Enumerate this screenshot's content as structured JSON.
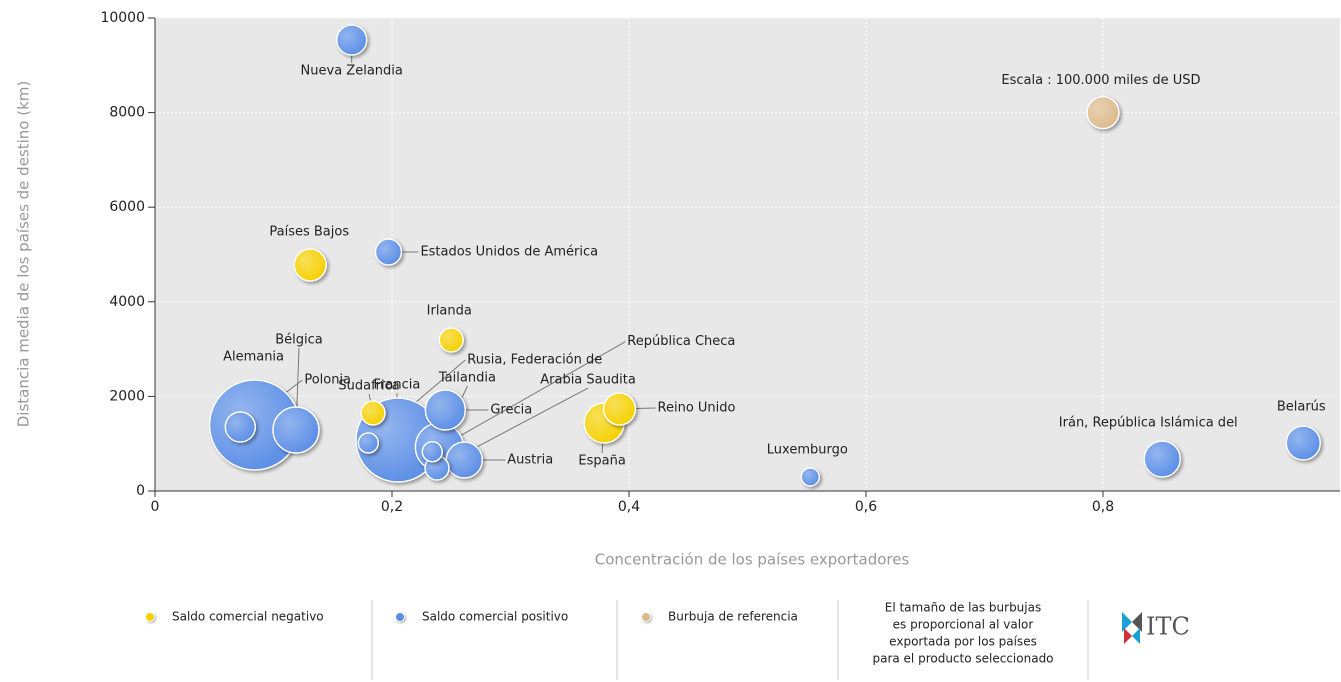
{
  "chart_data": {
    "type": "bubble",
    "xlabel": "Concentración de los países exportadores",
    "ylabel": "Distancia media de los países de destino (km)",
    "xlim": [
      0,
      1
    ],
    "ylim": [
      0,
      10000
    ],
    "xticks": [
      0,
      {
        "value": 0.2,
        "label": "0,2"
      },
      {
        "value": 0.4,
        "label": "0,4"
      },
      {
        "value": 0.6,
        "label": "0,6"
      },
      {
        "value": 0.8,
        "label": "0,8"
      }
    ],
    "yticks": [
      0,
      2000,
      4000,
      6000,
      8000,
      10000
    ],
    "grid": true,
    "series": [
      {
        "name": "Saldo comercial negativo",
        "color": "#f5d000",
        "labels": [
          "Países Bajos",
          "Irlanda",
          "Sudafrica",
          "España",
          "Reino Unido"
        ],
        "x": [
          0.131,
          0.25,
          0.184,
          0.379,
          0.392
        ],
        "values": [
          4778,
          3192,
          1649,
          1438,
          1734
        ],
        "sizes": [
          100000,
          56000,
          56000,
          156000,
          100000
        ]
      },
      {
        "name": "Saldo comercial positivo",
        "color": "#5b8ee6",
        "labels": [
          "Nueva Zelandia",
          "Estados Unidos de América",
          "Alemania",
          "Bélgica",
          "Polonia",
          "Francia",
          "Rusia, Federación de",
          "Tailandia",
          "Grecia",
          "Arabia Saudita",
          "República Checa",
          "Austria",
          "Luxemburgo",
          "Irán, República Islámica del",
          "Belarús"
        ],
        "x": [
          0.166,
          0.197,
          0.084,
          0.119,
          0.072,
          0.205,
          0.18,
          0.24,
          0.245,
          0.238,
          0.234,
          0.261,
          0.553,
          0.85,
          0.969
        ],
        "values": [
          9535,
          5053,
          1395,
          1290,
          1353,
          1078,
          1015,
          930,
          1712,
          486,
          830,
          655,
          296,
          677,
          1015
        ],
        "sizes": [
          88000,
          66000,
          791000,
          207000,
          88000,
          689000,
          39000,
          225000,
          156000,
          56000,
          39000,
          127000,
          32000,
          127000,
          113000
        ]
      },
      {
        "name": "Burbuja de referencia",
        "color": "#dcb98a",
        "labels": [
          "Escala : 100.000 miles de USD"
        ],
        "x": [
          0.8
        ],
        "values": [
          8000
        ],
        "sizes": [
          100000
        ]
      }
    ],
    "note": [
      "El tamaño de las burbujas",
      "es proporcional al valor",
      "exportada por los países",
      "para el producto seleccionado"
    ],
    "logo": "ITC"
  }
}
